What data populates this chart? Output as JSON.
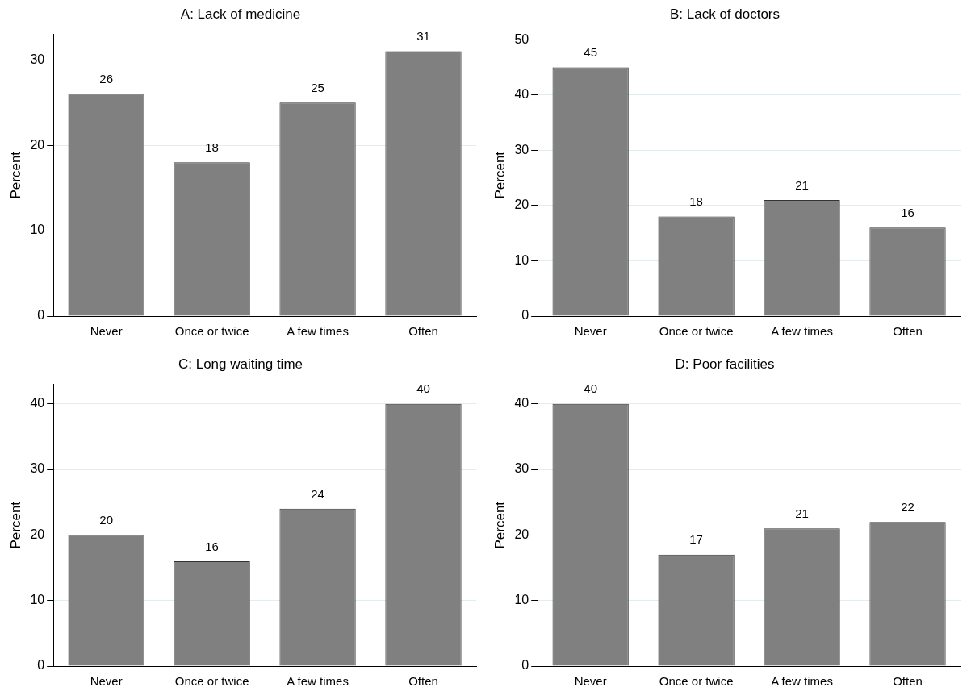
{
  "chart_data": [
    {
      "type": "bar",
      "title": "A: Lack of medicine",
      "ylabel": "Percent",
      "categories": [
        "Never",
        "Once or twice",
        "A few times",
        "Often"
      ],
      "values": [
        26,
        18,
        25,
        31
      ],
      "color": "#808080",
      "ylim": [
        0,
        33
      ],
      "yticks": [
        0,
        10,
        20,
        30
      ],
      "grid": "y",
      "data_labels": true
    },
    {
      "type": "bar",
      "title": "B: Lack of doctors",
      "ylabel": "Percent",
      "categories": [
        "Never",
        "Once or twice",
        "A few times",
        "Often"
      ],
      "values": [
        45,
        18,
        21,
        16
      ],
      "color": "#808080",
      "ylim": [
        0,
        51
      ],
      "yticks": [
        0,
        10,
        20,
        30,
        40,
        50
      ],
      "grid": "y",
      "data_labels": true
    },
    {
      "type": "bar",
      "title": "C: Long waiting time",
      "ylabel": "Percent",
      "categories": [
        "Never",
        "Once or twice",
        "A few times",
        "Often"
      ],
      "values": [
        20,
        16,
        24,
        40
      ],
      "color": "#808080",
      "ylim": [
        0,
        43
      ],
      "yticks": [
        0,
        10,
        20,
        30,
        40
      ],
      "grid": "y",
      "data_labels": true
    },
    {
      "type": "bar",
      "title": "D: Poor facilities",
      "ylabel": "Percent",
      "categories": [
        "Never",
        "Once or twice",
        "A few times",
        "Often"
      ],
      "values": [
        40,
        17,
        21,
        22
      ],
      "color": "#808080",
      "ylim": [
        0,
        43
      ],
      "yticks": [
        0,
        10,
        20,
        30,
        40
      ],
      "grid": "y",
      "data_labels": true
    }
  ]
}
